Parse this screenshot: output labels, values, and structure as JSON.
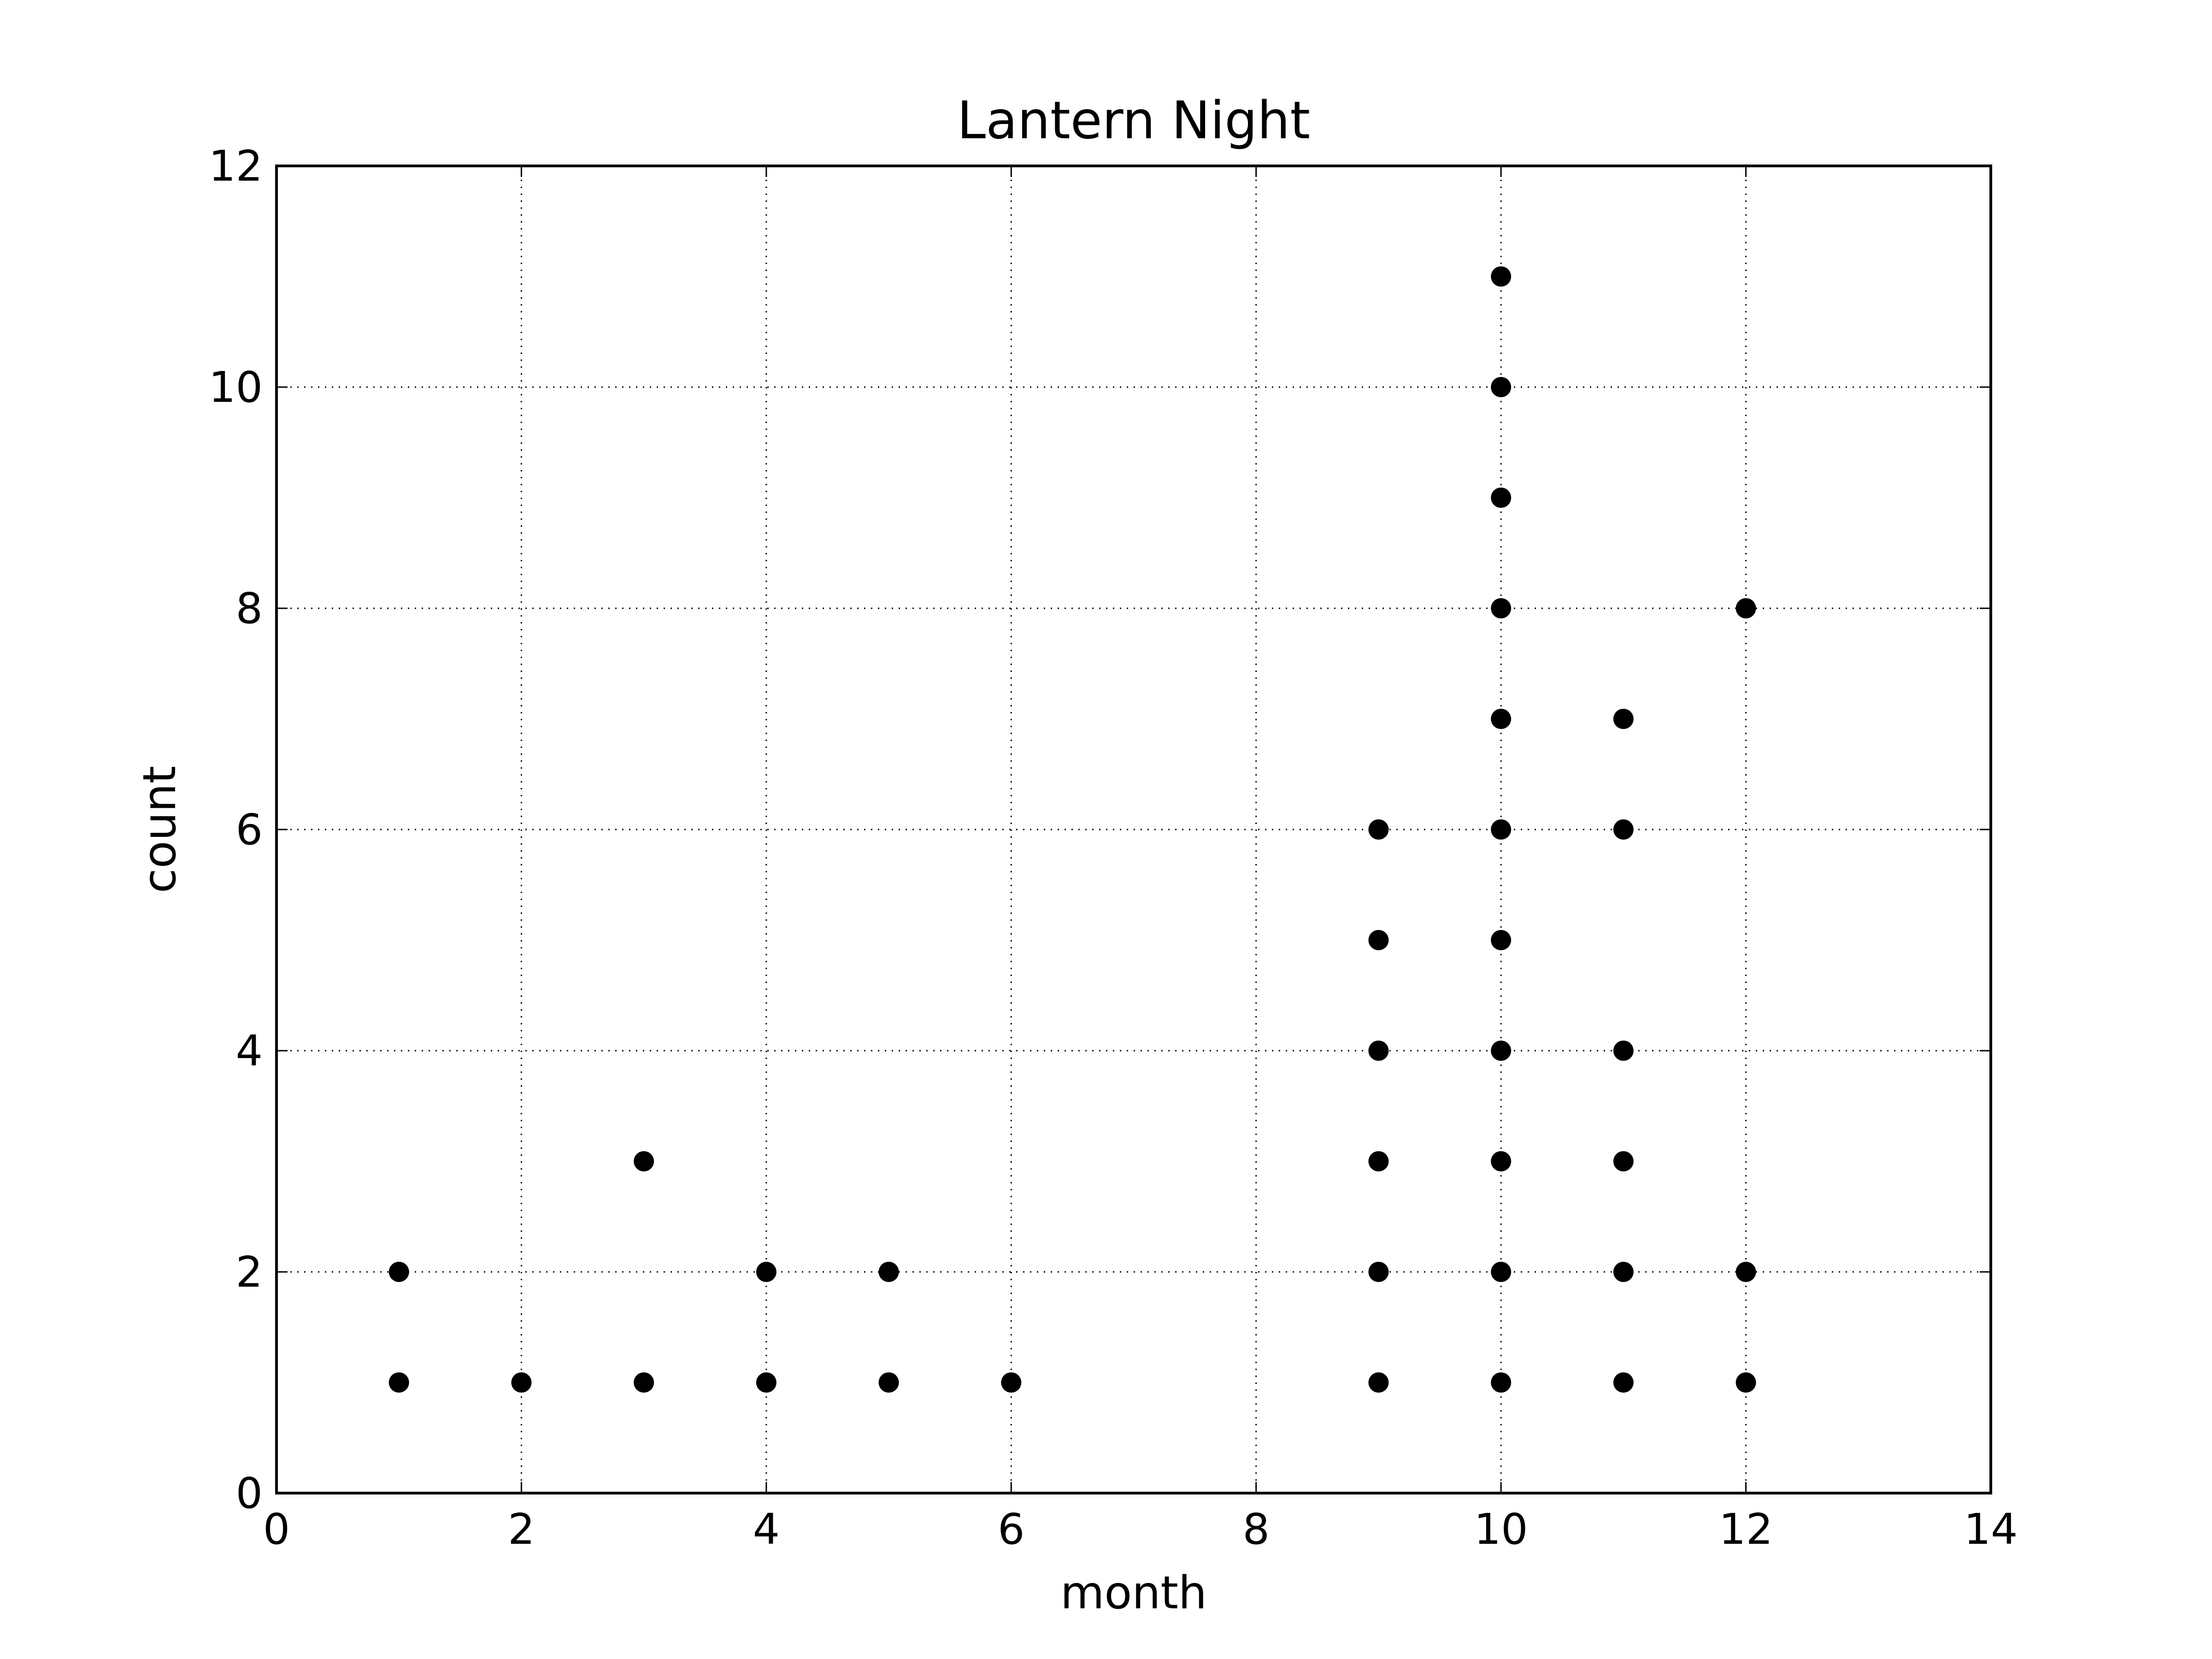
{
  "chart_data": {
    "type": "scatter",
    "title": "Lantern Night",
    "xlabel": "month",
    "ylabel": "count",
    "xlim": [
      0,
      14
    ],
    "ylim": [
      0,
      12
    ],
    "xticks": [
      0,
      2,
      4,
      6,
      8,
      10,
      12,
      14
    ],
    "yticks": [
      0,
      2,
      4,
      6,
      8,
      10,
      12
    ],
    "grid": true,
    "marker_color": "#000000",
    "points": [
      [
        1,
        1
      ],
      [
        1,
        2
      ],
      [
        2,
        1
      ],
      [
        3,
        1
      ],
      [
        3,
        3
      ],
      [
        4,
        1
      ],
      [
        4,
        2
      ],
      [
        5,
        1
      ],
      [
        5,
        2
      ],
      [
        6,
        1
      ],
      [
        9,
        1
      ],
      [
        9,
        2
      ],
      [
        9,
        3
      ],
      [
        9,
        4
      ],
      [
        9,
        5
      ],
      [
        9,
        6
      ],
      [
        10,
        1
      ],
      [
        10,
        2
      ],
      [
        10,
        3
      ],
      [
        10,
        4
      ],
      [
        10,
        5
      ],
      [
        10,
        6
      ],
      [
        10,
        7
      ],
      [
        10,
        8
      ],
      [
        10,
        9
      ],
      [
        10,
        10
      ],
      [
        10,
        11
      ],
      [
        11,
        1
      ],
      [
        11,
        2
      ],
      [
        11,
        3
      ],
      [
        11,
        4
      ],
      [
        11,
        6
      ],
      [
        11,
        7
      ],
      [
        12,
        1
      ],
      [
        12,
        2
      ],
      [
        12,
        8
      ]
    ]
  }
}
